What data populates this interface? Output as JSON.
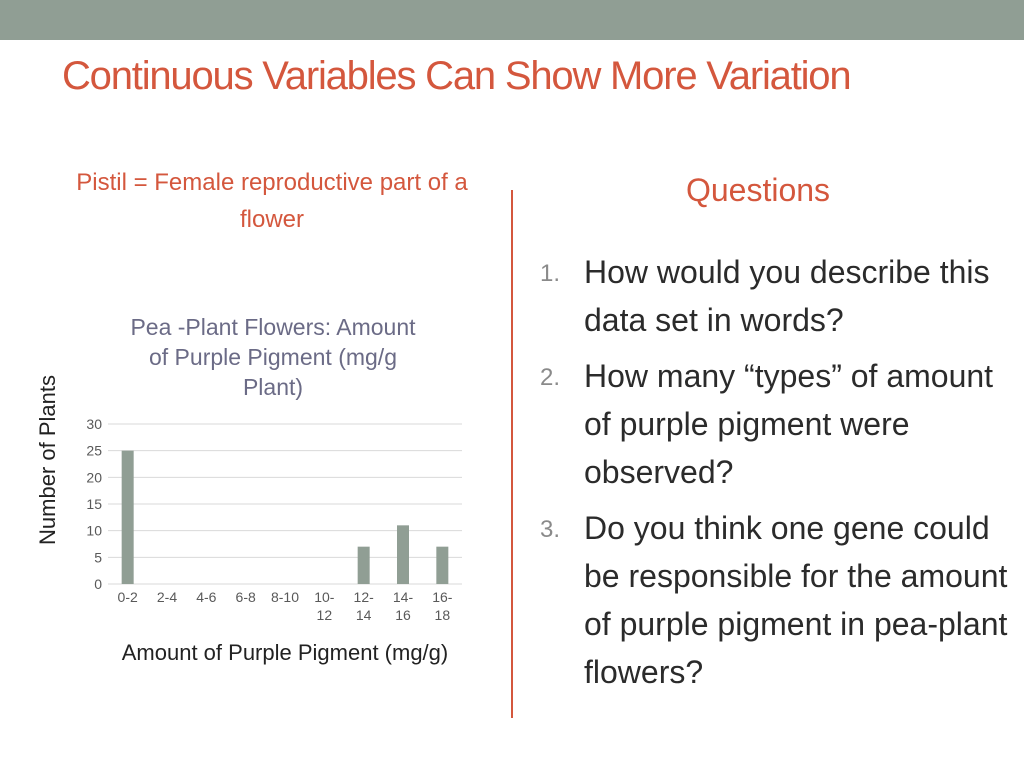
{
  "slide": {
    "title": "Continuous Variables Can Show More Variation",
    "subtitle": "Pistil = Female reproductive part of a flower"
  },
  "questions": {
    "heading": "Questions",
    "items": [
      {
        "num": "1.",
        "text": "How would you describe this data set in words?"
      },
      {
        "num": "2.",
        "text": "How many “types” of amount of purple pigment were observed?"
      },
      {
        "num": "3.",
        "text": "Do you think one gene could be responsible for the amount of purple pigment in pea-plant flowers?"
      }
    ]
  },
  "colors": {
    "accent": "#d4573d",
    "topbar": "#909e94",
    "bar": "#909e94"
  },
  "chart_data": {
    "type": "bar",
    "title": "Pea -Plant Flowers: Amount of Purple Pigment (mg/g Plant)",
    "xlabel": "Amount of Purple Pigment (mg/g)",
    "ylabel": "Number of Plants",
    "categories": [
      "0-2",
      "2-4",
      "4-6",
      "6-8",
      "8-10",
      "10-12",
      "12-14",
      "14-16",
      "16-18"
    ],
    "values": [
      25,
      0,
      0,
      0,
      0,
      0,
      7,
      11,
      7
    ],
    "yticks": [
      0,
      5,
      10,
      15,
      20,
      25,
      30
    ],
    "ylim": [
      0,
      30
    ],
    "grid": true,
    "legend": "none"
  }
}
